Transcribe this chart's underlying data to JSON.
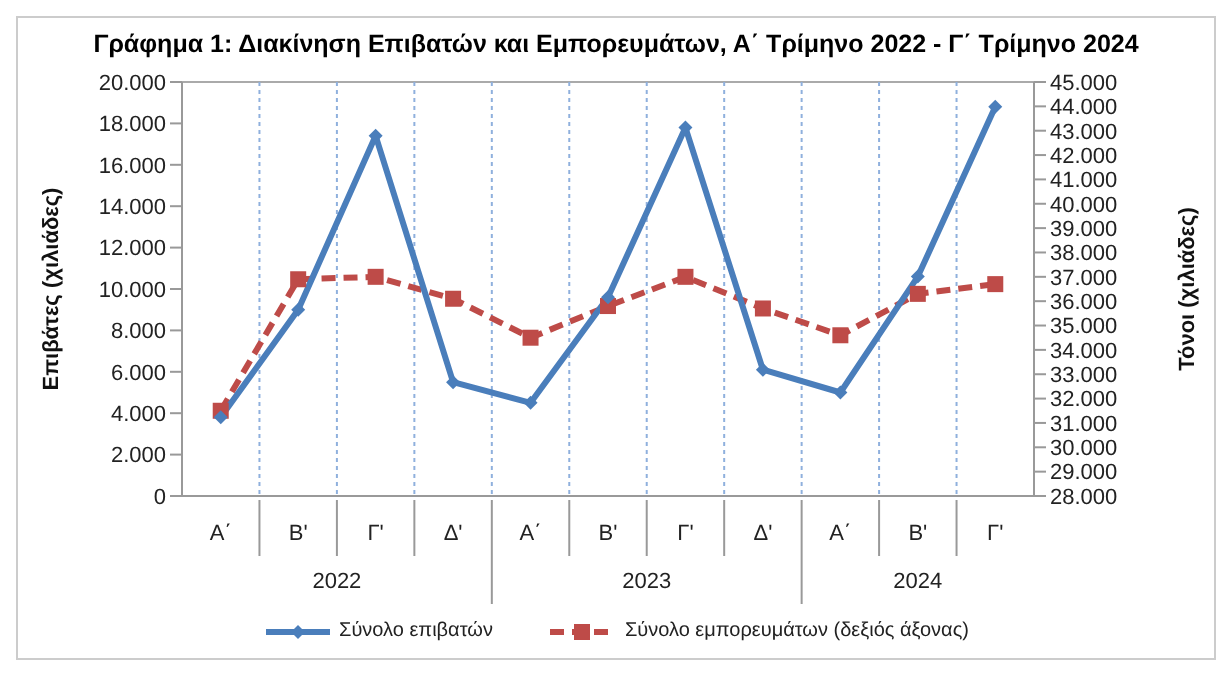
{
  "chart_data": {
    "type": "line",
    "title": "Γράφημα 1: Διακίνηση Επιβατών και Εμπορευμάτων, Α΄ Τρίμηνο 2022 - Γ΄ Τρίμηνο 2024",
    "ylabel": "Επιβάτες  (χιλιάδες)",
    "y2label": "Τόνοι  (χιλιάδες)",
    "categories": [
      "Α΄",
      "Β'",
      "Γ'",
      "Δ'",
      "Α΄",
      "Β'",
      "Γ'",
      "Δ'",
      "Α΄",
      "Β'",
      "Γ'"
    ],
    "annotations": [
      "2022",
      "2023",
      "2024"
    ],
    "series": [
      {
        "name": "Σύνολο επιβατών",
        "color": "#4a7ebb",
        "marker": "diamond",
        "line_style": "solid",
        "values": [
          3800,
          9000,
          17400,
          5500,
          4500,
          9600,
          17800,
          6100,
          5000,
          10600,
          18800
        ]
      },
      {
        "name": "Σύνολο εμπορευμάτων (δεξιός άξονας)",
        "color": "#be4b48",
        "marker": "square",
        "line_style": "dashed",
        "axis": "y2",
        "values": [
          31500,
          36900,
          37000,
          36100,
          34500,
          35800,
          37000,
          35700,
          34600,
          36300,
          36700
        ]
      }
    ],
    "ylim": [
      0,
      20000
    ],
    "yticks": [
      {
        "value": 0,
        "label": "0"
      },
      {
        "value": 2000,
        "label": "2.000"
      },
      {
        "value": 4000,
        "label": "4.000"
      },
      {
        "value": 6000,
        "label": "6.000"
      },
      {
        "value": 8000,
        "label": "8.000"
      },
      {
        "value": 10000,
        "label": "10.000"
      },
      {
        "value": 12000,
        "label": "12.000"
      },
      {
        "value": 14000,
        "label": "14.000"
      },
      {
        "value": 16000,
        "label": "16.000"
      },
      {
        "value": 18000,
        "label": "18.000"
      },
      {
        "value": 20000,
        "label": "20.000"
      }
    ],
    "y2lim": [
      28000,
      45000
    ],
    "y2ticks": [
      {
        "value": 28000,
        "label": "28.000"
      },
      {
        "value": 29000,
        "label": "29.000"
      },
      {
        "value": 30000,
        "label": "30.000"
      },
      {
        "value": 31000,
        "label": "31.000"
      },
      {
        "value": 32000,
        "label": "32.000"
      },
      {
        "value": 33000,
        "label": "33.000"
      },
      {
        "value": 34000,
        "label": "34.000"
      },
      {
        "value": 35000,
        "label": "35.000"
      },
      {
        "value": 36000,
        "label": "36.000"
      },
      {
        "value": 37000,
        "label": "37.000"
      },
      {
        "value": 38000,
        "label": "38.000"
      },
      {
        "value": 39000,
        "label": "39.000"
      },
      {
        "value": 40000,
        "label": "40.000"
      },
      {
        "value": 41000,
        "label": "41.000"
      },
      {
        "value": 42000,
        "label": "42.000"
      },
      {
        "value": 43000,
        "label": "43.000"
      },
      {
        "value": 44000,
        "label": "44.000"
      },
      {
        "value": 45000,
        "label": "45.000"
      }
    ],
    "grid": true,
    "legend": "bottom"
  }
}
